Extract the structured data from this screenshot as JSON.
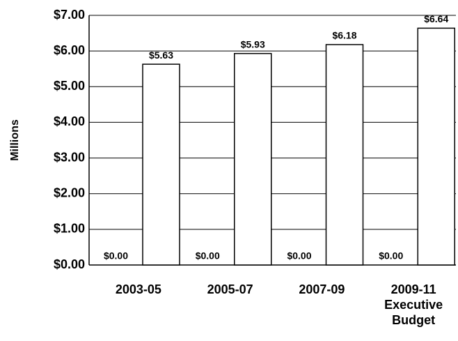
{
  "chart_data": {
    "type": "bar",
    "y_label": "Millions",
    "categories": [
      "2003-05",
      "2005-07",
      "2007-09",
      "2009-11 Executive Budget"
    ],
    "series": [
      {
        "color": "#ffffff",
        "values": [
          0,
          0,
          0,
          0
        ],
        "value_labels": [
          "$0.00",
          "$0.00",
          "$0.00",
          "$0.00"
        ]
      },
      {
        "color": "#ffffff",
        "values": [
          5.63,
          5.93,
          6.18,
          6.64
        ],
        "value_labels": [
          "$5.63",
          "$5.93",
          "$6.18",
          "$6.64"
        ]
      }
    ],
    "ylim": [
      0,
      7
    ],
    "yticks": [
      {
        "value": 0,
        "label": "$0.00"
      },
      {
        "value": 1,
        "label": "$1.00"
      },
      {
        "value": 2,
        "label": "$2.00"
      },
      {
        "value": 3,
        "label": "$3.00"
      },
      {
        "value": 4,
        "label": "$4.00"
      },
      {
        "value": 5,
        "label": "$5.00"
      },
      {
        "value": 6,
        "label": "$6.00"
      },
      {
        "value": 7,
        "label": "$7.00"
      }
    ],
    "grid": true
  }
}
